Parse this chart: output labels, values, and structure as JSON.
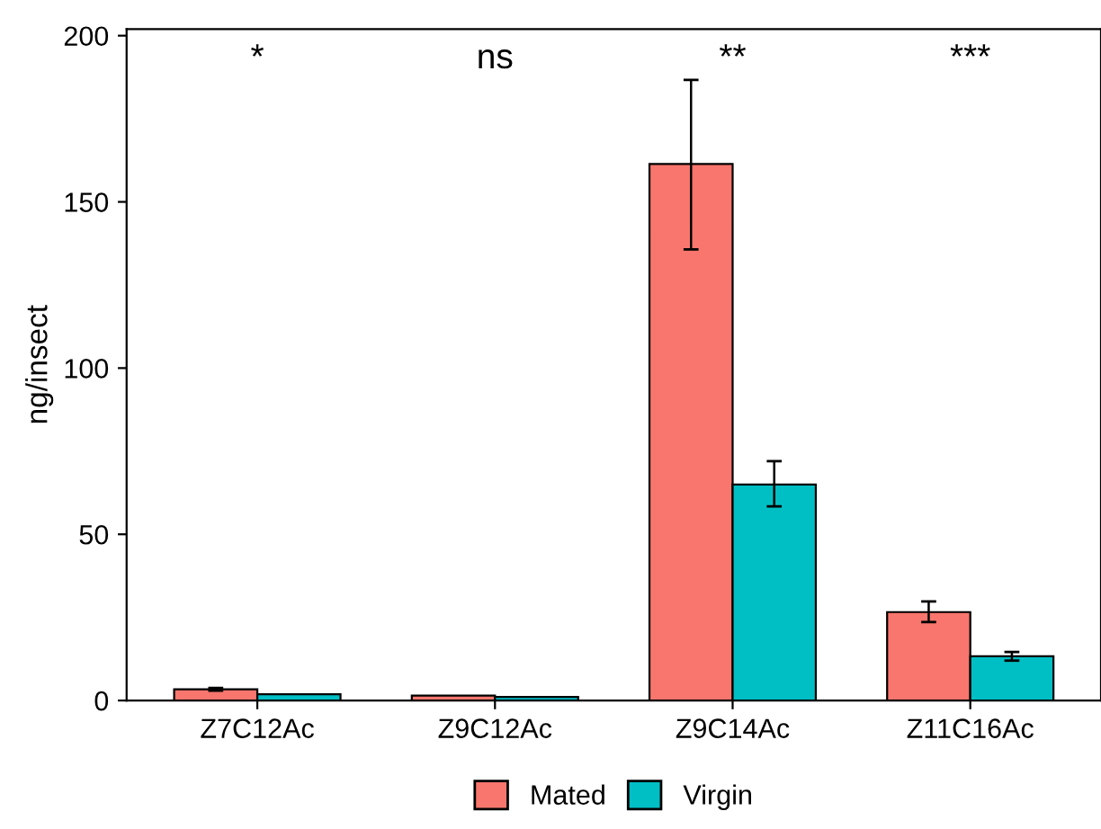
{
  "chart_data": {
    "type": "bar",
    "ylabel": "ng/insect",
    "categories": [
      "Z7C12Ac",
      "Z9C12Ac",
      "Z9C14Ac",
      "Z11C16Ac"
    ],
    "series": [
      {
        "name": "Mated",
        "color": "#f8766d",
        "values": [
          3.4,
          1.5,
          161.4,
          26.6
        ],
        "errors": [
          [
            3.0,
            3.8
          ],
          null,
          [
            135.7,
            186.7
          ],
          [
            23.6,
            29.8
          ]
        ]
      },
      {
        "name": "Virgin",
        "color": "#00bfc4",
        "values": [
          1.9,
          1.1,
          65,
          13.3
        ],
        "errors": [
          null,
          null,
          [
            58.4,
            72
          ],
          [
            12,
            14.6
          ]
        ]
      }
    ],
    "annotations": [
      "*",
      "ns",
      "**",
      "***"
    ],
    "ylim": [
      0,
      202
    ],
    "yticks": [
      0,
      50,
      100,
      150,
      200
    ],
    "grid": false,
    "legend": "bottom"
  }
}
